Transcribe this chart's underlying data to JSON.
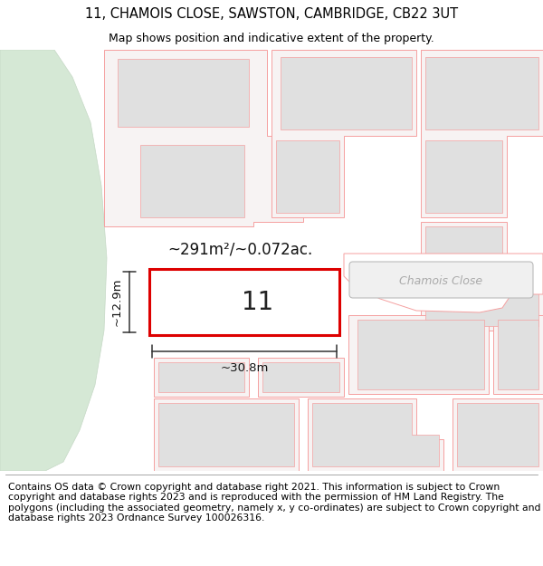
{
  "title_line1": "11, CHAMOIS CLOSE, SAWSTON, CAMBRIDGE, CB22 3UT",
  "title_line2": "Map shows position and indicative extent of the property.",
  "footer_text": "Contains OS data © Crown copyright and database right 2021. This information is subject to Crown copyright and database rights 2023 and is reproduced with the permission of HM Land Registry. The polygons (including the associated geometry, namely x, y co-ordinates) are subject to Crown copyright and database rights 2023 Ordnance Survey 100026316.",
  "area_label": "~291m²/~0.072ac.",
  "width_label": "~30.8m",
  "height_label": "~12.9m",
  "plot_number": "11",
  "road_label": "Chamois Close",
  "map_bg": "#f7f3f3",
  "plot_fill": "#ffffff",
  "plot_border": "#dd0000",
  "building_fill": "#e0e0e0",
  "plot_border_thin": "#f5a0a0",
  "green_fill": "#d5e8d5",
  "green_edge": "#c5d8c5",
  "road_pill_fill": "#f0f0f0",
  "road_pill_edge": "#bbbbbb",
  "road_label_color": "#aaaaaa",
  "dim_color": "#333333",
  "title_fontsize": 10.5,
  "subtitle_fontsize": 9.0,
  "footer_fontsize": 7.8,
  "number_fontsize": 20,
  "area_fontsize": 12,
  "dim_fontsize": 9.5
}
